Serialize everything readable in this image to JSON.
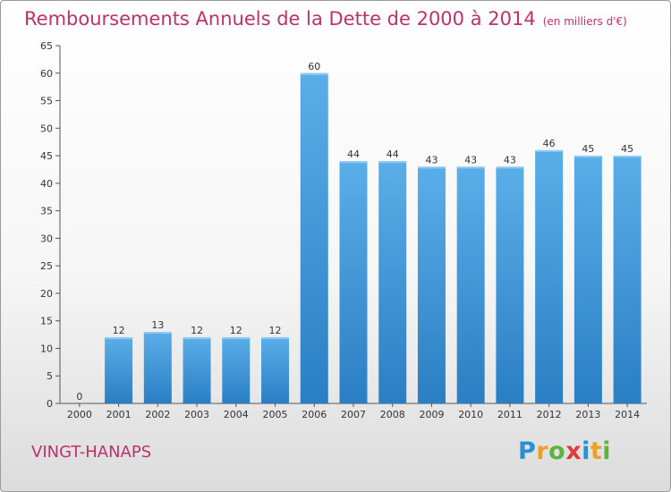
{
  "title": "Remboursements Annuels de la Dette de 2000 à 2014",
  "unit_note": "(en milliers d'€)",
  "commune": "VINGT-HANAPS",
  "logo_text": "Proxiti",
  "colors": {
    "title": "#c0306a",
    "bar_light": "#5aaee8",
    "bar_dark": "#2a7fc4",
    "logo": [
      "#2b8fd6",
      "#f0a020",
      "#5ab53c",
      "#e03a3a",
      "#2b8fd6",
      "#f0a020",
      "#5ab53c"
    ]
  },
  "chart_data": {
    "type": "bar",
    "title": "Remboursements Annuels de la Dette de 2000 à 2014",
    "subtitle": "(en milliers d'€)",
    "categories": [
      "2000",
      "2001",
      "2002",
      "2003",
      "2004",
      "2005",
      "2006",
      "2007",
      "2008",
      "2009",
      "2010",
      "2011",
      "2012",
      "2013",
      "2014"
    ],
    "values": [
      0,
      12,
      13,
      12,
      12,
      12,
      60,
      44,
      44,
      43,
      43,
      43,
      46,
      45,
      45
    ],
    "ylim": [
      0,
      65
    ],
    "yticks": [
      0,
      5,
      10,
      15,
      20,
      25,
      30,
      35,
      40,
      45,
      50,
      55,
      60,
      65
    ],
    "grid": false,
    "data_labels": true
  }
}
